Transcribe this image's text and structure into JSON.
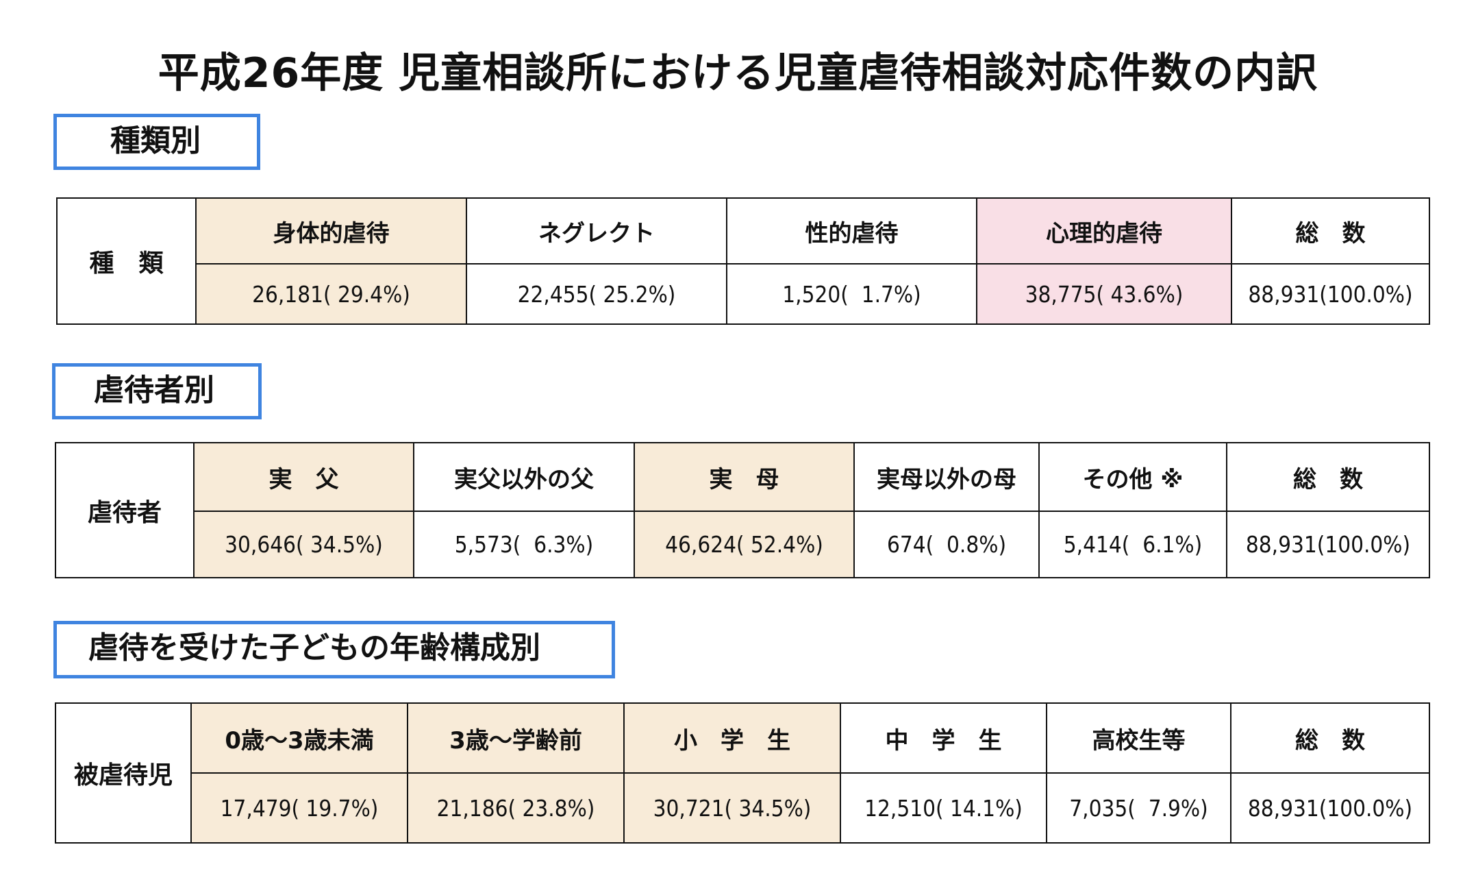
{
  "title": "平成26年度 児童相談所における児童虐待相談対応件数の内訳",
  "colors": {
    "accent_border": "#3f84e0",
    "highlight_beige": "#f8ebd8",
    "highlight_pink": "#f9dfe6"
  },
  "sections": [
    {
      "label": "種類別",
      "row_header": "種　類",
      "columns": [
        {
          "header": "身体的虐待",
          "value": "26,181( 29.4%)",
          "highlight": "beige"
        },
        {
          "header": "ネグレクト",
          "value": "22,455( 25.2%)",
          "highlight": ""
        },
        {
          "header": "性的虐待",
          "value": "1,520(  1.7%)",
          "highlight": ""
        },
        {
          "header": "心理的虐待",
          "value": "38,775( 43.6%)",
          "highlight": "pink"
        },
        {
          "header": "総　数",
          "value": "88,931(100.0%)",
          "highlight": ""
        }
      ]
    },
    {
      "label": "虐待者別",
      "row_header": "虐待者",
      "columns": [
        {
          "header": "実　父",
          "value": "30,646( 34.5%)",
          "highlight": "beige"
        },
        {
          "header": "実父以外の父",
          "value": "5,573(  6.3%)",
          "highlight": ""
        },
        {
          "header": "実　母",
          "value": "46,624( 52.4%)",
          "highlight": "beige"
        },
        {
          "header": "実母以外の母",
          "value": "674(  0.8%)",
          "highlight": ""
        },
        {
          "header": "その他 ※",
          "value": "5,414(  6.1%)",
          "highlight": ""
        },
        {
          "header": "総　数",
          "value": "88,931(100.0%)",
          "highlight": ""
        }
      ]
    },
    {
      "label": "虐待を受けた子どもの年齢構成別",
      "row_header": "被虐待児",
      "columns": [
        {
          "header": "0歳～3歳未満",
          "value": "17,479( 19.7%)",
          "highlight": "beige"
        },
        {
          "header": "3歳～学齢前",
          "value": "21,186( 23.8%)",
          "highlight": "beige"
        },
        {
          "header": "小　学　生",
          "value": "30,721( 34.5%)",
          "highlight": "beige"
        },
        {
          "header": "中　学　生",
          "value": "12,510( 14.1%)",
          "highlight": ""
        },
        {
          "header": "高校生等",
          "value": "7,035(  7.9%)",
          "highlight": ""
        },
        {
          "header": "総　数",
          "value": "88,931(100.0%)",
          "highlight": ""
        }
      ]
    }
  ]
}
